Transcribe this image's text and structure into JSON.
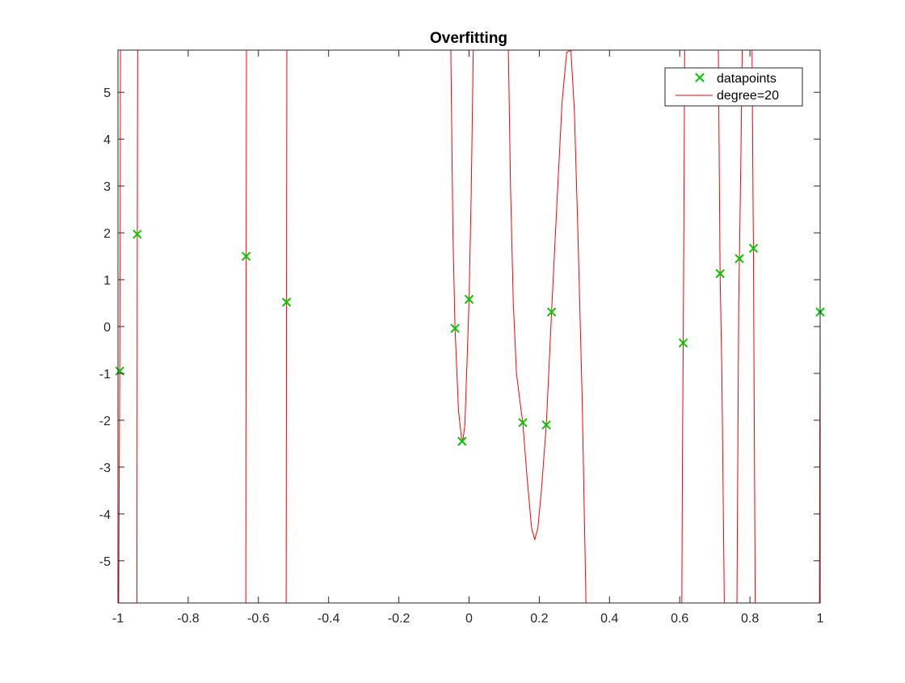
{
  "chart_data": {
    "type": "line",
    "title": "Overfitting",
    "xlabel": "",
    "ylabel": "",
    "xlim": [
      -1,
      1
    ],
    "ylim": [
      -5.9,
      5.9
    ],
    "xticks": [
      -1,
      -0.8,
      -0.6,
      -0.4,
      -0.2,
      0,
      0.2,
      0.4,
      0.6,
      0.8,
      1
    ],
    "xtick_labels": [
      "-1",
      "-0.8",
      "-0.6",
      "-0.4",
      "-0.2",
      "0",
      "0.2",
      "0.4",
      "0.6",
      "0.8",
      "1"
    ],
    "yticks": [
      -5,
      -4,
      -3,
      -2,
      -1,
      0,
      1,
      2,
      3,
      4,
      5
    ],
    "ytick_labels": [
      "-5",
      "-4",
      "-3",
      "-2",
      "-1",
      "0",
      "1",
      "2",
      "3",
      "4",
      "5"
    ],
    "grid": false,
    "legend_position": "top-right",
    "series": [
      {
        "name": "datapoints",
        "kind": "scatter",
        "marker": "x",
        "color": "#00cc00",
        "x": [
          -0.995,
          -0.945,
          -0.635,
          -0.52,
          -0.04,
          -0.02,
          0.0,
          0.153,
          0.22,
          0.235,
          0.61,
          0.715,
          0.77,
          0.81,
          1.0
        ],
        "y": [
          -0.95,
          1.97,
          1.5,
          0.52,
          -0.04,
          -2.45,
          0.58,
          -2.05,
          -2.1,
          0.31,
          -0.35,
          1.13,
          1.45,
          1.67,
          0.31
        ]
      },
      {
        "name": "degree=20",
        "kind": "line",
        "color": "#ff0000",
        "segments": [
          [
            [
              -0.998,
              -5.9
            ],
            [
              -0.996,
              -2.5
            ],
            [
              -0.995,
              -0.95
            ],
            [
              -0.994,
              1.5
            ],
            [
              -0.993,
              5.9
            ]
          ],
          [
            [
              -0.946,
              -5.9
            ],
            [
              -0.945,
              1.97
            ],
            [
              -0.944,
              5.9
            ]
          ],
          [
            [
              -0.636,
              -5.9
            ],
            [
              -0.635,
              1.5
            ],
            [
              -0.634,
              5.9
            ]
          ],
          [
            [
              -0.521,
              -5.9
            ],
            [
              -0.52,
              0.52
            ],
            [
              -0.519,
              5.9
            ]
          ],
          [
            [
              -0.052,
              5.9
            ],
            [
              -0.046,
              2.0
            ],
            [
              -0.04,
              -0.04
            ],
            [
              -0.03,
              -1.8
            ],
            [
              -0.022,
              -2.35
            ],
            [
              -0.018,
              -2.45
            ],
            [
              -0.012,
              -2.1
            ],
            [
              -0.006,
              -0.8
            ],
            [
              0.0,
              0.58
            ],
            [
              0.006,
              2.8
            ],
            [
              0.012,
              5.9
            ]
          ],
          [
            [
              0.112,
              5.9
            ],
            [
              0.118,
              3.0
            ],
            [
              0.126,
              0.5
            ],
            [
              0.135,
              -1.0
            ],
            [
              0.145,
              -1.6
            ],
            [
              0.153,
              -2.05
            ],
            [
              0.165,
              -3.2
            ],
            [
              0.178,
              -4.3
            ],
            [
              0.187,
              -4.55
            ],
            [
              0.196,
              -4.3
            ],
            [
              0.206,
              -3.5
            ],
            [
              0.22,
              -2.1
            ],
            [
              0.235,
              0.31
            ],
            [
              0.25,
              2.6
            ],
            [
              0.265,
              4.8
            ],
            [
              0.278,
              5.85
            ],
            [
              0.29,
              5.9
            ],
            [
              0.3,
              4.6
            ],
            [
              0.31,
              2.0
            ],
            [
              0.322,
              -1.5
            ],
            [
              0.333,
              -5.9
            ]
          ],
          [
            [
              0.606,
              -5.9
            ],
            [
              0.608,
              -2.5
            ],
            [
              0.61,
              -0.35
            ],
            [
              0.612,
              2.5
            ],
            [
              0.614,
              5.9
            ]
          ],
          [
            [
              0.71,
              5.9
            ],
            [
              0.715,
              1.13
            ],
            [
              0.72,
              -1.0
            ],
            [
              0.727,
              -5.9
            ]
          ],
          [
            [
              0.763,
              -5.9
            ],
            [
              0.768,
              0.5
            ],
            [
              0.77,
              1.45
            ],
            [
              0.774,
              3.5
            ],
            [
              0.778,
              5.9
            ]
          ],
          [
            [
              0.806,
              5.9
            ],
            [
              0.809,
              2.5
            ],
            [
              0.81,
              1.67
            ],
            [
              0.812,
              -1.5
            ],
            [
              0.815,
              -5.9
            ]
          ],
          [
            [
              0.998,
              -5.9
            ],
            [
              0.999,
              -2.0
            ],
            [
              1.0,
              0.31
            ]
          ]
        ]
      }
    ]
  }
}
